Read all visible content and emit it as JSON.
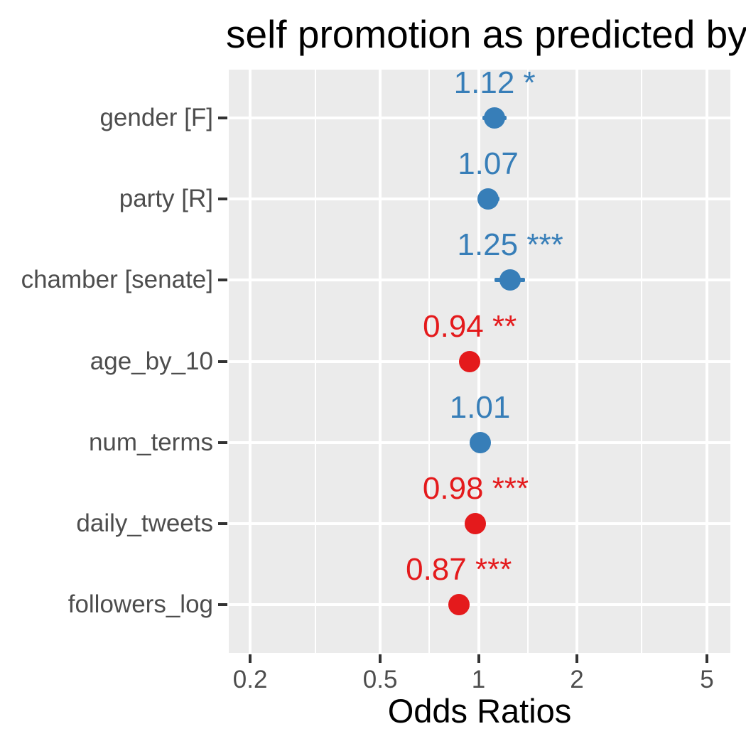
{
  "title": "self promotion as predicted by",
  "chart_data": {
    "type": "scatter",
    "subtype": "forest-plot",
    "title": "self promotion as predicted by",
    "xlabel": "Odds Ratios",
    "x_scale": "log10",
    "xlim": [
      0.172,
      5.9
    ],
    "x_major_ticks": [
      0.2,
      0.5,
      1,
      2,
      5
    ],
    "x_major_tick_labels": [
      "0.2",
      "0.5",
      "1",
      "2",
      "5"
    ],
    "x_minor_ticks": [
      0.3162,
      0.7071,
      1.4142,
      3.1623
    ],
    "grid": true,
    "legend": false,
    "rows": [
      {
        "category": "gender [F]",
        "odds_ratio": 1.12,
        "label": "1.12 *",
        "significance": "*",
        "ci_low": 1.03,
        "ci_high": 1.22,
        "color": "#377EB8"
      },
      {
        "category": "party [R]",
        "odds_ratio": 1.07,
        "label": "1.07",
        "significance": "",
        "ci_low": 1.0,
        "ci_high": 1.16,
        "color": "#377EB8"
      },
      {
        "category": "chamber [senate]",
        "odds_ratio": 1.25,
        "label": "1.25 ***",
        "significance": "***",
        "ci_low": 1.12,
        "ci_high": 1.39,
        "color": "#377EB8"
      },
      {
        "category": "age_by_10",
        "odds_ratio": 0.94,
        "label": "0.94 **",
        "significance": "**",
        "ci_low": null,
        "ci_high": null,
        "color": "#E41A1C"
      },
      {
        "category": "num_terms",
        "odds_ratio": 1.01,
        "label": "1.01",
        "significance": "",
        "ci_low": null,
        "ci_high": null,
        "color": "#377EB8"
      },
      {
        "category": "daily_tweets",
        "odds_ratio": 0.98,
        "label": "0.98 ***",
        "significance": "***",
        "ci_low": null,
        "ci_high": null,
        "color": "#E41A1C"
      },
      {
        "category": "followers_log",
        "odds_ratio": 0.87,
        "label": "0.87 ***",
        "significance": "***",
        "ci_low": null,
        "ci_high": null,
        "color": "#E41A1C"
      }
    ],
    "colors": {
      "positive": "#377EB8",
      "negative": "#E41A1C",
      "panel_background": "#EBEBEB",
      "gridline": "#FFFFFF",
      "axis_text": "#4D4D4D",
      "tick_mark": "#333333",
      "title": "#000000"
    }
  }
}
